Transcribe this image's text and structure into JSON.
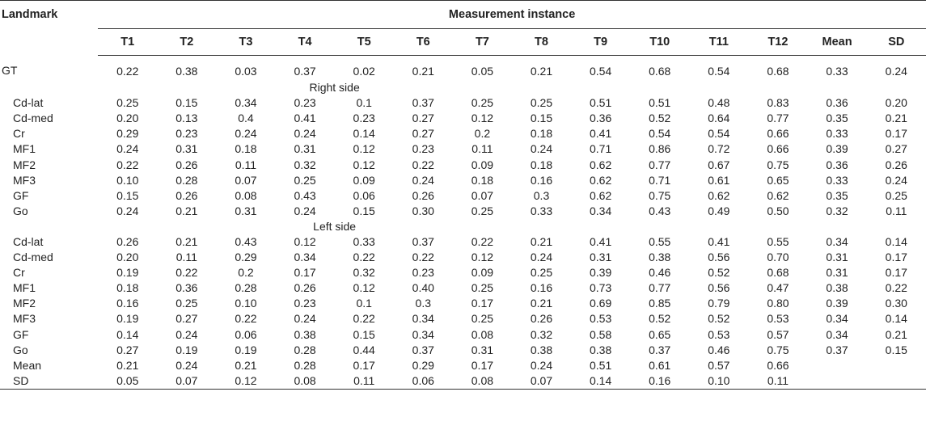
{
  "table": {
    "landmark_header": "Landmark",
    "group_header": "Measurement instance",
    "columns": [
      "T1",
      "T2",
      "T3",
      "T4",
      "T5",
      "T6",
      "T7",
      "T8",
      "T9",
      "T10",
      "T11",
      "T12",
      "Mean",
      "SD"
    ],
    "rows": [
      {
        "label": "GT",
        "values": [
          "0.22",
          "0.38",
          "0.03",
          "0.37",
          "0.02",
          "0.21",
          "0.05",
          "0.21",
          "0.54",
          "0.68",
          "0.54",
          "0.68",
          "0.33",
          "0.24"
        ]
      },
      {
        "section": "Right side"
      },
      {
        "label": "Cd-lat",
        "values": [
          "0.25",
          "0.15",
          "0.34",
          "0.23",
          "0.1",
          "0.37",
          "0.25",
          "0.25",
          "0.51",
          "0.51",
          "0.48",
          "0.83",
          "0.36",
          "0.20"
        ]
      },
      {
        "label": "Cd-med",
        "values": [
          "0.20",
          "0.13",
          "0.4",
          "0.41",
          "0.23",
          "0.27",
          "0.12",
          "0.15",
          "0.36",
          "0.52",
          "0.64",
          "0.77",
          "0.35",
          "0.21"
        ]
      },
      {
        "label": "Cr",
        "values": [
          "0.29",
          "0.23",
          "0.24",
          "0.24",
          "0.14",
          "0.27",
          "0.2",
          "0.18",
          "0.41",
          "0.54",
          "0.54",
          "0.66",
          "0.33",
          "0.17"
        ]
      },
      {
        "label": "MF1",
        "values": [
          "0.24",
          "0.31",
          "0.18",
          "0.31",
          "0.12",
          "0.23",
          "0.11",
          "0.24",
          "0.71",
          "0.86",
          "0.72",
          "0.66",
          "0.39",
          "0.27"
        ]
      },
      {
        "label": "MF2",
        "values": [
          "0.22",
          "0.26",
          "0.11",
          "0.32",
          "0.12",
          "0.22",
          "0.09",
          "0.18",
          "0.62",
          "0.77",
          "0.67",
          "0.75",
          "0.36",
          "0.26"
        ]
      },
      {
        "label": "MF3",
        "values": [
          "0.10",
          "0.28",
          "0.07",
          "0.25",
          "0.09",
          "0.24",
          "0.18",
          "0.16",
          "0.62",
          "0.71",
          "0.61",
          "0.65",
          "0.33",
          "0.24"
        ]
      },
      {
        "label": "GF",
        "values": [
          "0.15",
          "0.26",
          "0.08",
          "0.43",
          "0.06",
          "0.26",
          "0.07",
          "0.3",
          "0.62",
          "0.75",
          "0.62",
          "0.62",
          "0.35",
          "0.25"
        ]
      },
      {
        "label": "Go",
        "values": [
          "0.24",
          "0.21",
          "0.31",
          "0.24",
          "0.15",
          "0.30",
          "0.25",
          "0.33",
          "0.34",
          "0.43",
          "0.49",
          "0.50",
          "0.32",
          "0.11"
        ]
      },
      {
        "section": "Left side"
      },
      {
        "label": "Cd-lat",
        "values": [
          "0.26",
          "0.21",
          "0.43",
          "0.12",
          "0.33",
          "0.37",
          "0.22",
          "0.21",
          "0.41",
          "0.55",
          "0.41",
          "0.55",
          "0.34",
          "0.14"
        ]
      },
      {
        "label": "Cd-med",
        "values": [
          "0.20",
          "0.11",
          "0.29",
          "0.34",
          "0.22",
          "0.22",
          "0.12",
          "0.24",
          "0.31",
          "0.38",
          "0.56",
          "0.70",
          "0.31",
          "0.17"
        ]
      },
      {
        "label": "Cr",
        "values": [
          "0.19",
          "0.22",
          "0.2",
          "0.17",
          "0.32",
          "0.23",
          "0.09",
          "0.25",
          "0.39",
          "0.46",
          "0.52",
          "0.68",
          "0.31",
          "0.17"
        ]
      },
      {
        "label": "MF1",
        "values": [
          "0.18",
          "0.36",
          "0.28",
          "0.26",
          "0.12",
          "0.40",
          "0.25",
          "0.16",
          "0.73",
          "0.77",
          "0.56",
          "0.47",
          "0.38",
          "0.22"
        ]
      },
      {
        "label": "MF2",
        "values": [
          "0.16",
          "0.25",
          "0.10",
          "0.23",
          "0.1",
          "0.3",
          "0.17",
          "0.21",
          "0.69",
          "0.85",
          "0.79",
          "0.80",
          "0.39",
          "0.30"
        ]
      },
      {
        "label": "MF3",
        "values": [
          "0.19",
          "0.27",
          "0.22",
          "0.24",
          "0.22",
          "0.34",
          "0.25",
          "0.26",
          "0.53",
          "0.52",
          "0.52",
          "0.53",
          "0.34",
          "0.14"
        ]
      },
      {
        "label": "GF",
        "values": [
          "0.14",
          "0.24",
          "0.06",
          "0.38",
          "0.15",
          "0.34",
          "0.08",
          "0.32",
          "0.58",
          "0.65",
          "0.53",
          "0.57",
          "0.34",
          "0.21"
        ]
      },
      {
        "label": "Go",
        "values": [
          "0.27",
          "0.19",
          "0.19",
          "0.28",
          "0.44",
          "0.37",
          "0.31",
          "0.38",
          "0.38",
          "0.37",
          "0.46",
          "0.75",
          "0.37",
          "0.15"
        ]
      },
      {
        "label": "Mean",
        "values": [
          "0.21",
          "0.24",
          "0.21",
          "0.28",
          "0.17",
          "0.29",
          "0.17",
          "0.24",
          "0.51",
          "0.61",
          "0.57",
          "0.66",
          "",
          ""
        ]
      },
      {
        "label": "SD",
        "values": [
          "0.05",
          "0.07",
          "0.12",
          "0.08",
          "0.11",
          "0.06",
          "0.08",
          "0.07",
          "0.14",
          "0.16",
          "0.10",
          "0.11",
          "",
          ""
        ]
      }
    ]
  }
}
